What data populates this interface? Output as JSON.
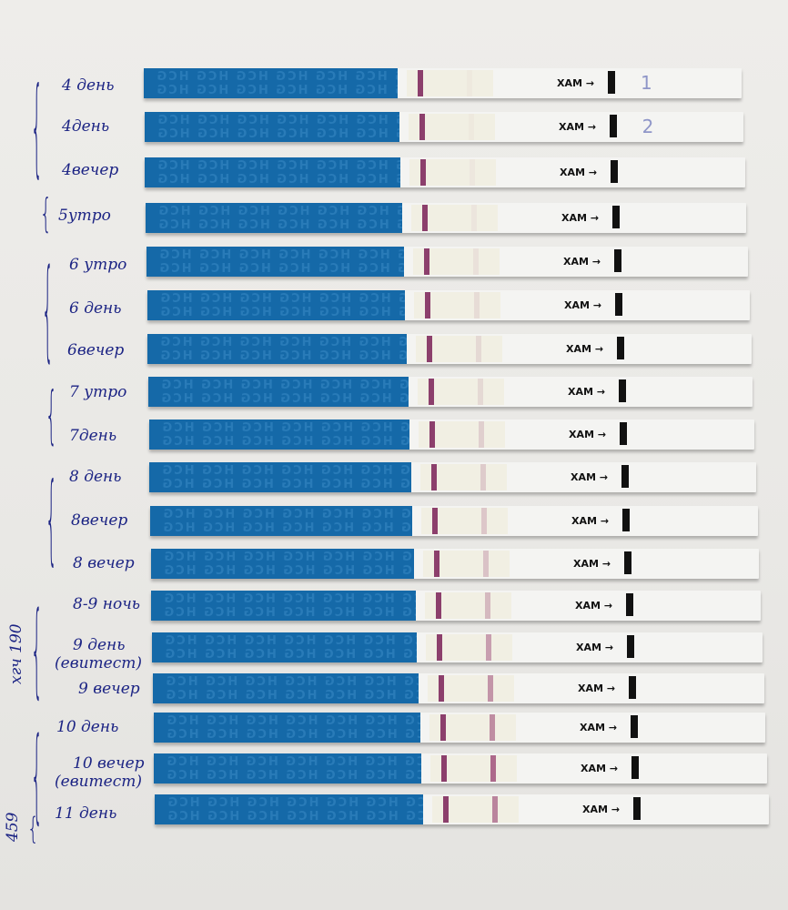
{
  "strip_brand_text": "HCG",
  "max_marker_text": "MAX",
  "colors": {
    "strip_blue": "#1569a8",
    "control_line": "#8c3f6c",
    "ink": "#1c2484"
  },
  "strips": [
    {
      "label": [
        "4 день"
      ],
      "note": "1",
      "test_line_intensity": 0.03
    },
    {
      "label": [
        "4день"
      ],
      "note": "2",
      "test_line_intensity": 0.03
    },
    {
      "label": [
        "4вечер"
      ],
      "test_line_intensity": 0.04
    },
    {
      "label": [
        "5утро"
      ],
      "test_line_intensity": 0.05
    },
    {
      "label": [
        "6 утро"
      ],
      "test_line_intensity": 0.08
    },
    {
      "label": [
        "6 день"
      ],
      "test_line_intensity": 0.1
    },
    {
      "label": [
        "6вечер"
      ],
      "test_line_intensity": 0.12
    },
    {
      "label": [
        "7 утро"
      ],
      "test_line_intensity": 0.12
    },
    {
      "label": [
        "7день"
      ],
      "test_line_intensity": 0.18
    },
    {
      "label": [
        "8 день"
      ],
      "test_line_intensity": 0.2
    },
    {
      "label": [
        "8вечер"
      ],
      "test_line_intensity": 0.22
    },
    {
      "label": [
        "8 вечер"
      ],
      "test_line_intensity": 0.25
    },
    {
      "label": [
        "8-9 ночь"
      ],
      "test_line_intensity": 0.3
    },
    {
      "label": [
        "9 день",
        "(евитест)"
      ],
      "test_line_intensity": 0.45
    },
    {
      "label": [
        "9 вечер"
      ],
      "test_line_intensity": 0.5
    },
    {
      "label": [
        "10 день"
      ],
      "test_line_intensity": 0.55
    },
    {
      "label": [
        "10 вечер",
        "(евитест)"
      ],
      "test_line_intensity": 0.75
    },
    {
      "label": [
        "11 день"
      ],
      "test_line_intensity": 0.6
    }
  ],
  "side_notes": {
    "hcg_190": "хгч 190",
    "hcg_459": "459"
  }
}
